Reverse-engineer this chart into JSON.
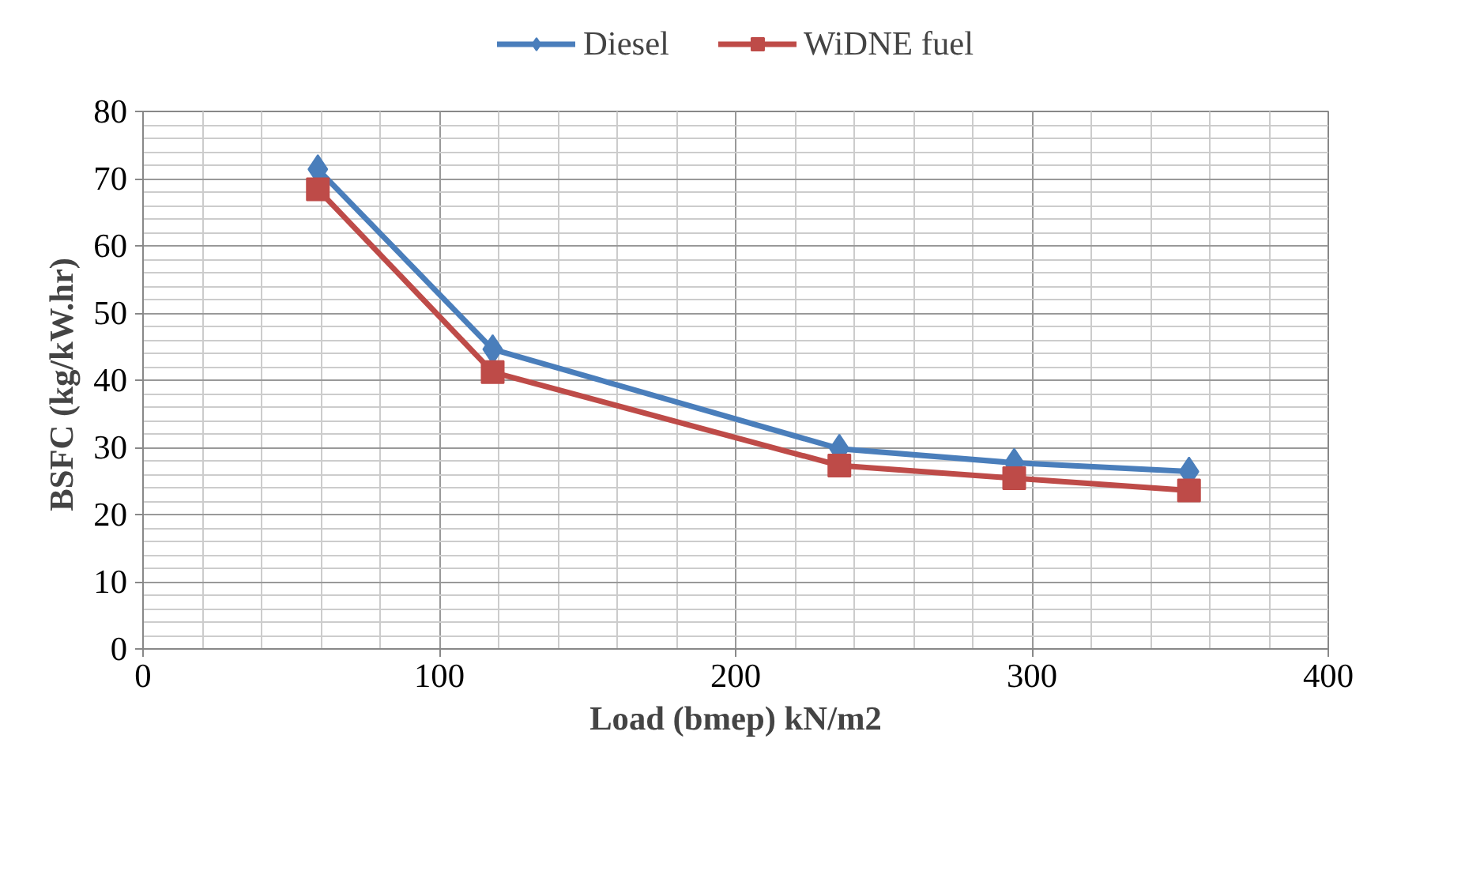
{
  "chart_data": {
    "type": "line",
    "xlabel": "Load (bmep) kN/m2",
    "ylabel": "BSFC  (kg/kW.hr)",
    "xlim": [
      0,
      400
    ],
    "xticks": [
      0,
      100,
      200,
      300,
      400
    ],
    "ylim": [
      0,
      80
    ],
    "yticks": [
      0,
      10,
      20,
      30,
      40,
      50,
      60,
      70,
      80
    ],
    "grid": true,
    "legend": "top",
    "line_style": "solid",
    "series": [
      {
        "name": "Diesel",
        "color": "#4a7ebb",
        "marker": "diamond",
        "x": [
          59,
          118,
          235,
          294,
          353
        ],
        "values": [
          71.4,
          44.6,
          29.8,
          27.7,
          26.4
        ]
      },
      {
        "name": "WiDNE fuel",
        "color": "#be4b48",
        "marker": "square",
        "x": [
          59,
          118,
          235,
          294,
          353
        ],
        "values": [
          68.4,
          41.2,
          27.3,
          25.4,
          23.6
        ]
      }
    ]
  }
}
